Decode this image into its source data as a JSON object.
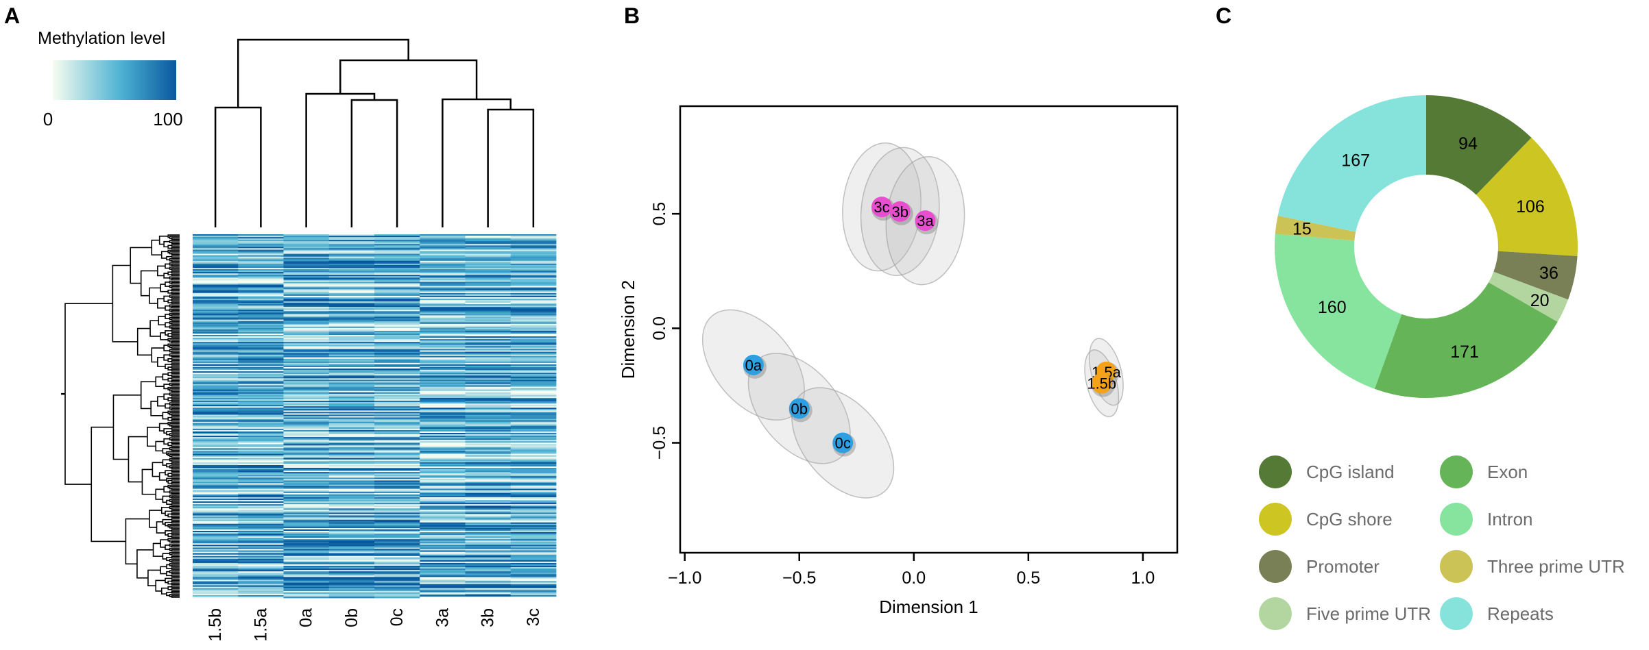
{
  "panels": {
    "a": "A",
    "b": "B",
    "c": "C"
  },
  "heatmap": {
    "legend_title": "Methylation level",
    "legend_min": "0",
    "legend_max": "100",
    "color_low": "#f7fcf0",
    "color_mid": "#4eb3d3",
    "color_high": "#08589e",
    "columns": [
      "1.5b",
      "1.5a",
      "0a",
      "0b",
      "0c",
      "3a",
      "3b",
      "3c"
    ]
  },
  "chart_data": [
    {
      "type": "heatmap",
      "title": "Methylation level",
      "columns": [
        "1.5b",
        "1.5a",
        "0a",
        "0b",
        "0c",
        "3a",
        "3b",
        "3c"
      ],
      "value_range": [
        0,
        100
      ],
      "column_dendrogram": "((1.5b,1.5a),((0a,(0b,0c)),(3a,(3b,3c))))"
    },
    {
      "type": "scatter",
      "xlabel": "Dimension 1",
      "ylabel": "Dimension 2",
      "xlim": [
        -1.02,
        1.15
      ],
      "ylim": [
        -0.98,
        0.97
      ],
      "xticks": [
        -1.0,
        -0.5,
        0.0,
        0.5,
        1.0
      ],
      "yticks": [
        -0.5,
        0.0,
        0.5
      ],
      "xtick_labels": [
        "−1.0",
        "−0.5",
        "0.0",
        "0.5",
        "1.0"
      ],
      "ytick_labels": [
        "−0.5",
        "0.0",
        "0.5"
      ],
      "points": [
        {
          "label": "3c",
          "x": -0.14,
          "y": 0.53,
          "color": "#e84fd0"
        },
        {
          "label": "3b",
          "x": -0.06,
          "y": 0.51,
          "color": "#e84fd0"
        },
        {
          "label": "3a",
          "x": 0.05,
          "y": 0.47,
          "color": "#e84fd0"
        },
        {
          "label": "0a",
          "x": -0.7,
          "y": -0.16,
          "color": "#2e9fe0"
        },
        {
          "label": "0b",
          "x": -0.5,
          "y": -0.35,
          "color": "#2e9fe0"
        },
        {
          "label": "0c",
          "x": -0.31,
          "y": -0.5,
          "color": "#2e9fe0"
        },
        {
          "label": "1.5a",
          "x": 0.84,
          "y": -0.19,
          "color": "#f5a21b"
        },
        {
          "label": "1.5b",
          "x": 0.82,
          "y": -0.24,
          "color": "#f5a21b"
        }
      ]
    },
    {
      "type": "pie",
      "labels": [
        "CpG island",
        "CpG shore",
        "Promoter",
        "Five prime UTR",
        "Exon",
        "Intron",
        "Three prime UTR",
        "Repeats"
      ],
      "values": [
        94,
        106,
        36,
        20,
        171,
        160,
        15,
        167
      ],
      "value_labels": [
        "94",
        "106",
        "36",
        "20",
        "171",
        "160",
        "15",
        "167"
      ],
      "colors": [
        "#557a35",
        "#cdc522",
        "#7a8055",
        "#b3d6a0",
        "#66b458",
        "#86e49f",
        "#cbc356",
        "#86e3db"
      ],
      "legend_order": [
        "CpG island",
        "Exon",
        "CpG shore",
        "Intron",
        "Promoter",
        "Three prime UTR",
        "Five prime UTR",
        "Repeats"
      ],
      "legend_position": "bottom"
    }
  ]
}
